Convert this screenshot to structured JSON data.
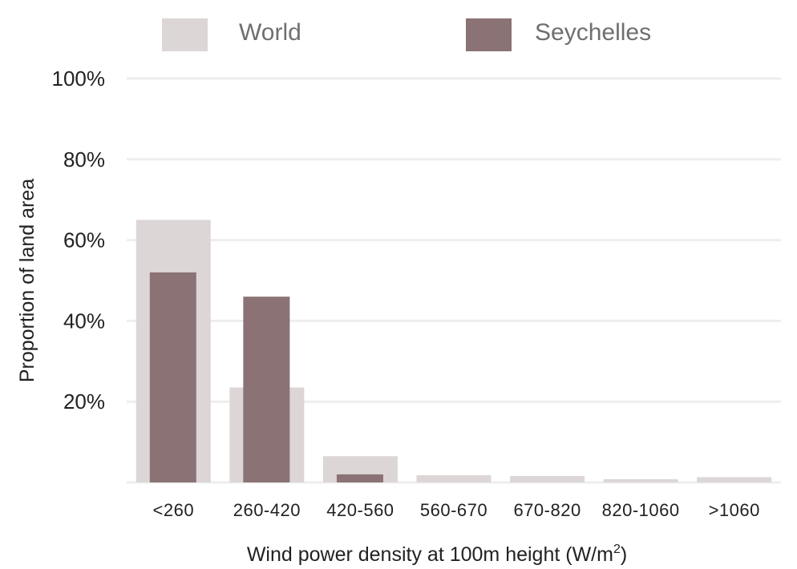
{
  "chart_data": {
    "type": "bar",
    "categories": [
      "<260",
      "260-420",
      "420-560",
      "560-670",
      "670-820",
      "820-1060",
      ">1060"
    ],
    "series": [
      {
        "name": "World",
        "color": "#ddd6d6",
        "values": [
          65,
          23.5,
          6.5,
          1.8,
          1.6,
          0.8,
          1.3
        ]
      },
      {
        "name": "Seychelles",
        "color": "#8a7275",
        "values": [
          52,
          46,
          2,
          0,
          0,
          0,
          0
        ]
      }
    ],
    "ylim": [
      0,
      100
    ],
    "yticks": [
      20,
      40,
      60,
      80,
      100
    ],
    "ytick_labels": [
      "20%",
      "40%",
      "60%",
      "80%",
      "100%"
    ],
    "xlabel": "Wind power density at 100m height (W/m",
    "xlabel_sup": "2",
    "xlabel_close": ")",
    "ylabel": "Proportion of land area",
    "grid": true,
    "legend_position": "top"
  }
}
